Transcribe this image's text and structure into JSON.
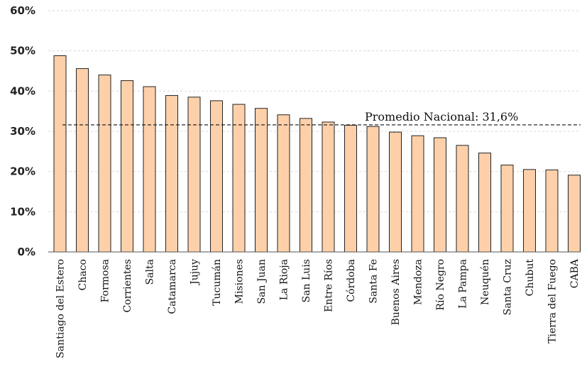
{
  "chart_data": {
    "type": "bar",
    "title": "",
    "xlabel": "",
    "ylabel": "",
    "ylim": [
      0,
      60
    ],
    "y_tick_values": [
      0,
      10,
      20,
      30,
      40,
      50,
      60
    ],
    "y_tick_labels": [
      "0%",
      "10%",
      "20%",
      "30%",
      "40%",
      "50%",
      "60%"
    ],
    "grid": true,
    "bar_color": "#fdd0aa",
    "categories": [
      "Santiago del Estero",
      "Chaco",
      "Formosa",
      "Corrientes",
      "Salta",
      "Catamarca",
      "Jujuy",
      "Tucumán",
      "Misiones",
      "San Juan",
      "La Rioja",
      "San Luis",
      "Entre Ríos",
      "Córdoba",
      "Santa Fe",
      "Buenos Aires",
      "Mendoza",
      "Río Negro",
      "La Pampa",
      "Neuquén",
      "Santa Cruz",
      "Chubut",
      "Tierra del Fuego",
      "CABA"
    ],
    "values": [
      48.8,
      45.6,
      44.0,
      42.6,
      41.1,
      38.9,
      38.5,
      37.6,
      36.7,
      35.7,
      34.1,
      33.2,
      32.3,
      31.5,
      31.2,
      29.8,
      28.9,
      28.4,
      26.5,
      24.6,
      21.6,
      20.5,
      20.4,
      19.1
    ],
    "reference_line": {
      "value": 31.6,
      "label": "Promedio Nacional: 31,6%"
    }
  }
}
